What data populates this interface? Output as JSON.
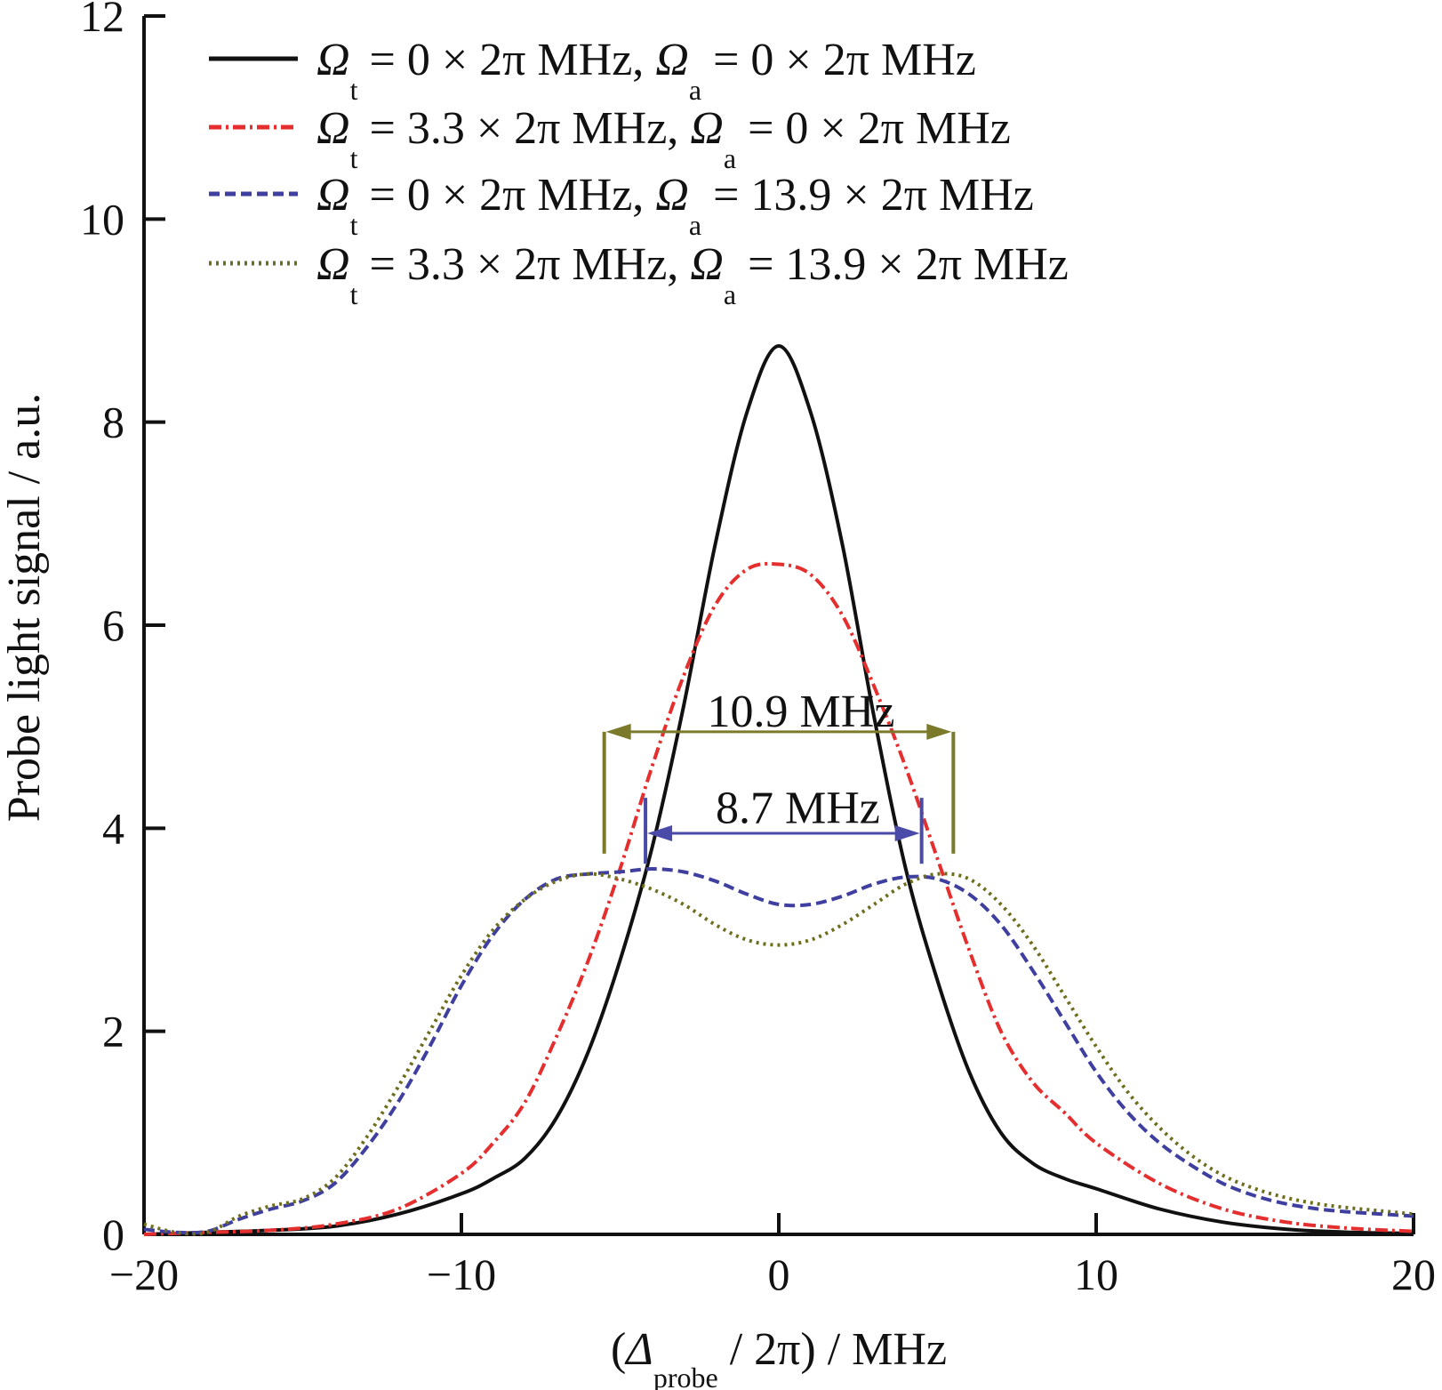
{
  "chart_data": {
    "type": "line",
    "xlabel": {
      "pre": "(",
      "symbol": "Δ",
      "sub": "probe",
      "post": " / 2π) / MHz"
    },
    "ylabel": "Probe light signal / a.u.",
    "xlim": [
      -20,
      20
    ],
    "ylim": [
      0,
      12
    ],
    "xticks": [
      -20,
      -10,
      0,
      10,
      20
    ],
    "xtick_labels": [
      "−20",
      "−10",
      "0",
      "10",
      "20"
    ],
    "yticks": [
      0,
      2,
      4,
      6,
      8,
      10,
      12
    ],
    "ytick_labels": [
      "0",
      "2",
      "4",
      "6",
      "8",
      "10",
      "12"
    ],
    "grid": false,
    "legend_position": "top",
    "series": [
      {
        "legend": {
          "t_sub": "t",
          "t_val": " = 0 × 2π MHz, ",
          "a_sub": "a",
          "a_val": " = 0 × 2π MHz"
        },
        "color": "#111111",
        "dash": "solid",
        "x": [
          -20,
          -18,
          -16,
          -14,
          -12,
          -10,
          -9,
          -8,
          -7,
          -6,
          -5,
          -4,
          -3,
          -2,
          -1,
          0,
          1,
          2,
          3,
          4,
          5,
          6,
          7,
          8,
          9,
          10,
          12,
          14,
          16,
          18,
          20
        ],
        "y": [
          0,
          0.02,
          0.04,
          0.08,
          0.2,
          0.4,
          0.55,
          0.75,
          1.15,
          1.8,
          2.7,
          3.8,
          5.2,
          6.8,
          8.1,
          8.75,
          8.1,
          6.8,
          5.1,
          3.6,
          2.5,
          1.6,
          1.0,
          0.7,
          0.55,
          0.45,
          0.25,
          0.12,
          0.05,
          0.02,
          0.01
        ]
      },
      {
        "legend": {
          "t_sub": "t",
          "t_val": " = 3.3 × 2π MHz, ",
          "a_sub": "a",
          "a_val": " = 0 × 2π MHz"
        },
        "color": "#e52e2e",
        "dash": "dashdot",
        "x": [
          -20,
          -18,
          -16,
          -14,
          -12,
          -10,
          -9,
          -8,
          -7,
          -6,
          -5,
          -4,
          -3,
          -2,
          -1,
          0,
          1,
          2,
          3,
          4,
          5,
          6,
          7,
          8,
          9,
          10,
          12,
          14,
          16,
          18,
          20
        ],
        "y": [
          0,
          0.02,
          0.04,
          0.1,
          0.25,
          0.6,
          0.9,
          1.3,
          1.95,
          2.7,
          3.6,
          4.6,
          5.5,
          6.2,
          6.55,
          6.6,
          6.5,
          6.1,
          5.4,
          4.6,
          3.7,
          2.8,
          2.0,
          1.5,
          1.2,
          0.9,
          0.5,
          0.25,
          0.12,
          0.06,
          0.03
        ]
      },
      {
        "legend": {
          "t_sub": "t",
          "t_val": " = 0 × 2π MHz, ",
          "a_sub": "a",
          "a_val": " = 13.9 × 2π MHz"
        },
        "color": "#3f3f9f",
        "dash": "dashed",
        "x": [
          -20,
          -19,
          -18,
          -17,
          -16,
          -15,
          -14,
          -13,
          -12,
          -11,
          -10,
          -9,
          -8,
          -7,
          -6,
          -5,
          -4,
          -3,
          -2,
          -1,
          0,
          1,
          2,
          3,
          4,
          5,
          6,
          7,
          8,
          9,
          10,
          11,
          12,
          13,
          14,
          15,
          16,
          17,
          18,
          19,
          20
        ],
        "y": [
          0.05,
          0.02,
          0.03,
          0.15,
          0.25,
          0.33,
          0.5,
          0.85,
          1.3,
          1.85,
          2.45,
          2.95,
          3.3,
          3.5,
          3.55,
          3.57,
          3.6,
          3.57,
          3.48,
          3.35,
          3.25,
          3.25,
          3.33,
          3.45,
          3.52,
          3.5,
          3.35,
          3.05,
          2.6,
          2.1,
          1.6,
          1.2,
          0.9,
          0.68,
          0.5,
          0.38,
          0.3,
          0.25,
          0.22,
          0.2,
          0.18
        ]
      },
      {
        "legend": {
          "t_sub": "t",
          "t_val": " = 3.3 × 2π MHz, ",
          "a_sub": "a",
          "a_val": " = 13.9 × 2π MHz"
        },
        "color": "#6e6e1e",
        "dash": "dotted",
        "x": [
          -20,
          -19,
          -18,
          -17,
          -16,
          -15,
          -14,
          -13,
          -12,
          -11,
          -10,
          -9,
          -8,
          -7,
          -6,
          -5,
          -4,
          -3,
          -2,
          -1,
          0,
          1,
          2,
          3,
          4,
          5,
          6,
          7,
          8,
          9,
          10,
          11,
          12,
          13,
          14,
          15,
          16,
          17,
          18,
          19,
          20
        ],
        "y": [
          0.1,
          0.02,
          0.02,
          0.18,
          0.28,
          0.35,
          0.55,
          0.95,
          1.45,
          2.0,
          2.55,
          3.0,
          3.3,
          3.48,
          3.55,
          3.5,
          3.4,
          3.25,
          3.05,
          2.9,
          2.85,
          2.9,
          3.05,
          3.25,
          3.45,
          3.55,
          3.5,
          3.25,
          2.85,
          2.35,
          1.85,
          1.4,
          1.05,
          0.78,
          0.58,
          0.45,
          0.36,
          0.3,
          0.26,
          0.23,
          0.2
        ]
      }
    ],
    "annotations": [
      {
        "text": "10.9 MHz",
        "x1": -5.5,
        "x2": 5.5,
        "y": 4.95,
        "tick_top": 4.95,
        "tick_bottom": 3.75,
        "text_x": 0.7,
        "text_y": 5.0,
        "color": "#7a7a2a"
      },
      {
        "text": "8.7 MHz",
        "x1": -4.2,
        "x2": 4.5,
        "y": 3.95,
        "tick_top": 4.3,
        "tick_bottom": 3.65,
        "text_x": 0.6,
        "text_y": 4.05,
        "color": "#4a4aa8"
      }
    ]
  }
}
